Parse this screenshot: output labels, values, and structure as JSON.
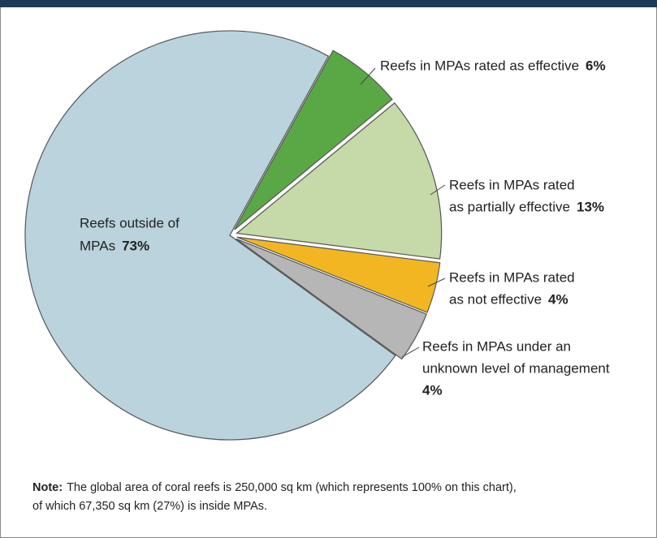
{
  "chart_data": {
    "type": "pie",
    "categories": [
      [
        "Reefs in MPAs rated as effective"
      ],
      [
        "Reefs in MPAs rated",
        "as partially effective"
      ],
      [
        "Reefs in MPAs rated",
        "as not effective"
      ],
      [
        "Reefs in MPAs under an",
        "unknown level of management"
      ],
      [
        "Reefs outside of",
        "MPAs"
      ]
    ],
    "values": [
      6,
      13,
      4,
      4,
      73
    ],
    "value_labels": [
      "6%",
      "13%",
      "4%",
      "4%",
      "73%"
    ],
    "colors": [
      "#5aa845",
      "#c6d9a9",
      "#f3b623",
      "#b6b6b6",
      "#bad3dd"
    ],
    "note": {
      "label": "Note:",
      "lines": [
        "The global area of coral reefs is 250,000 sq km (which represents 100% on this chart),",
        "of which 67,350 sq km (27%) is inside MPAs."
      ]
    }
  }
}
